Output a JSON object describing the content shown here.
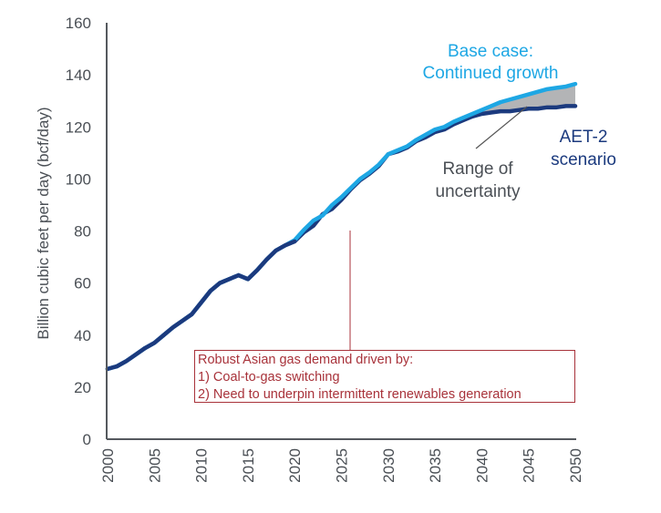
{
  "chart_data": {
    "type": "line",
    "ylabel": "Billion cubic feet per day (bcf/day)",
    "xlabel": "",
    "ylim": [
      0,
      160
    ],
    "xlim": [
      2000,
      2050
    ],
    "yticks": [
      0,
      20,
      40,
      60,
      80,
      100,
      120,
      140,
      160
    ],
    "xticks": [
      2000,
      2005,
      2010,
      2015,
      2020,
      2025,
      2030,
      2035,
      2040,
      2045,
      2050
    ],
    "grid": false,
    "x": [
      2000,
      2001,
      2002,
      2003,
      2004,
      2005,
      2006,
      2007,
      2008,
      2009,
      2010,
      2011,
      2012,
      2013,
      2014,
      2015,
      2016,
      2017,
      2018,
      2019,
      2020,
      2021,
      2022,
      2023,
      2024,
      2025,
      2026,
      2027,
      2028,
      2029,
      2030,
      2031,
      2032,
      2033,
      2034,
      2035,
      2036,
      2037,
      2038,
      2039,
      2040,
      2041,
      2042,
      2043,
      2044,
      2045,
      2046,
      2047,
      2048,
      2049,
      2050
    ],
    "series": [
      {
        "name": "Base case: Continued growth",
        "color": "#1ea7e4",
        "values": [
          27,
          28,
          30,
          32.5,
          35,
          37,
          40,
          43,
          45.5,
          48,
          52.5,
          57,
          60,
          61.5,
          63,
          61.5,
          65,
          69,
          72.5,
          74.5,
          76.5,
          80.5,
          84,
          86,
          90,
          93,
          96.5,
          100,
          102.5,
          105.5,
          109.5,
          111,
          112.5,
          115,
          117,
          119,
          120,
          122,
          123.5,
          125,
          126.5,
          128,
          129.5,
          130.5,
          131.5,
          132.5,
          133.5,
          134.5,
          135,
          135.5,
          136.5
        ]
      },
      {
        "name": "AET-2 scenario",
        "color": "#1b3a7e",
        "values": [
          27,
          28,
          30,
          32.5,
          35,
          37,
          40,
          43,
          45.5,
          48,
          52.5,
          57,
          60,
          61.5,
          63,
          61.5,
          65,
          69,
          72.5,
          74.5,
          76,
          79.5,
          82,
          86.5,
          88.5,
          92,
          96,
          99.5,
          102,
          105,
          109.5,
          110.5,
          112,
          114.5,
          116,
          118,
          119,
          121,
          122.5,
          124,
          125,
          125.5,
          126,
          126,
          126.5,
          127,
          127,
          127.5,
          127.5,
          128,
          128
        ]
      }
    ],
    "annotations": {
      "base_label_1": "Base case:",
      "base_label_2": "Continued growth",
      "aet_label_1": "AET-2",
      "aet_label_2": "scenario",
      "range_label_1": "Range of",
      "range_label_2": "uncertainty",
      "range_fill_color": "#b3b4b6",
      "note_color": "#a8323a",
      "note_lines": [
        "Robust Asian gas demand driven by:",
        "1) Coal-to-gas switching",
        "2) Need to underpin intermittent renewables generation"
      ]
    }
  }
}
